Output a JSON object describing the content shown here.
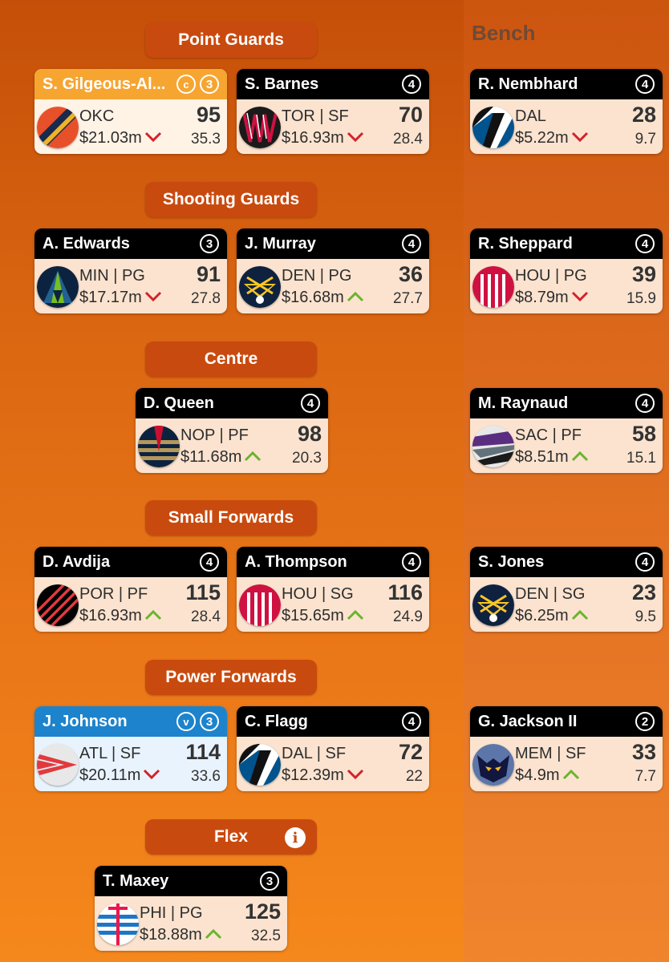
{
  "bench_title": "Bench",
  "sections": [
    {
      "label": "Point Guards"
    },
    {
      "label": "Shooting Guards"
    },
    {
      "label": "Centre"
    },
    {
      "label": "Small Forwards"
    },
    {
      "label": "Power Forwards"
    },
    {
      "label": "Flex",
      "info_icon": "i"
    }
  ],
  "players": [
    {
      "name": "S. Gilgeous-Al...",
      "tag": "c",
      "badge": "3",
      "team": "OKC",
      "price": "$21.03m",
      "trend": "down",
      "score": "95",
      "avg": "35.3",
      "logo": "okc"
    },
    {
      "name": "S. Barnes",
      "badge": "4",
      "team": "TOR | SF",
      "price": "$16.93m",
      "trend": "down",
      "score": "70",
      "avg": "28.4",
      "logo": "tor"
    },
    {
      "name": "A. Edwards",
      "badge": "3",
      "team": "MIN | PG",
      "price": "$17.17m",
      "trend": "down",
      "score": "91",
      "avg": "27.8",
      "logo": "min"
    },
    {
      "name": "J. Murray",
      "badge": "4",
      "team": "DEN | PG",
      "price": "$16.68m",
      "trend": "up",
      "score": "36",
      "avg": "27.7",
      "logo": "den"
    },
    {
      "name": "D. Queen",
      "badge": "4",
      "team": "NOP | PF",
      "price": "$11.68m",
      "trend": "up",
      "score": "98",
      "avg": "20.3",
      "logo": "nop"
    },
    {
      "name": "D. Avdija",
      "badge": "4",
      "team": "POR | PF",
      "price": "$16.93m",
      "trend": "up",
      "score": "115",
      "avg": "28.4",
      "logo": "por"
    },
    {
      "name": "A. Thompson",
      "badge": "4",
      "team": "HOU | SG",
      "price": "$15.65m",
      "trend": "up",
      "score": "116",
      "avg": "24.9",
      "logo": "hou"
    },
    {
      "name": "J. Johnson",
      "tag": "v",
      "badge": "3",
      "team": "ATL | SF",
      "price": "$20.11m",
      "trend": "down",
      "score": "114",
      "avg": "33.6",
      "logo": "atl"
    },
    {
      "name": "C. Flagg",
      "badge": "4",
      "team": "DAL | SF",
      "price": "$12.39m",
      "trend": "down",
      "score": "72",
      "avg": "22",
      "logo": "dal"
    },
    {
      "name": "T. Maxey",
      "badge": "3",
      "team": "PHI | PG",
      "price": "$18.88m",
      "trend": "up",
      "score": "125",
      "avg": "32.5",
      "logo": "phi"
    }
  ],
  "bench": [
    {
      "name": "R. Nembhard",
      "badge": "4",
      "team": "DAL",
      "price": "$5.22m",
      "trend": "down",
      "score": "28",
      "avg": "9.7",
      "logo": "dal"
    },
    {
      "name": "R. Sheppard",
      "badge": "4",
      "team": "HOU | PG",
      "price": "$8.79m",
      "trend": "down",
      "score": "39",
      "avg": "15.9",
      "logo": "hou"
    },
    {
      "name": "M. Raynaud",
      "badge": "4",
      "team": "SAC | PF",
      "price": "$8.51m",
      "trend": "up",
      "score": "58",
      "avg": "15.1",
      "logo": "sac"
    },
    {
      "name": "S. Jones",
      "badge": "4",
      "team": "DEN | SG",
      "price": "$6.25m",
      "trend": "up",
      "score": "23",
      "avg": "9.5",
      "logo": "den"
    },
    {
      "name": "G. Jackson II",
      "badge": "2",
      "team": "MEM | SF",
      "price": "$4.9m",
      "trend": "up",
      "score": "33",
      "avg": "7.7",
      "logo": "mem"
    }
  ],
  "colors": {
    "up": "#6ab42e",
    "down": "#d2232a",
    "captain": "#f6a531",
    "vice": "#1d83cc"
  }
}
